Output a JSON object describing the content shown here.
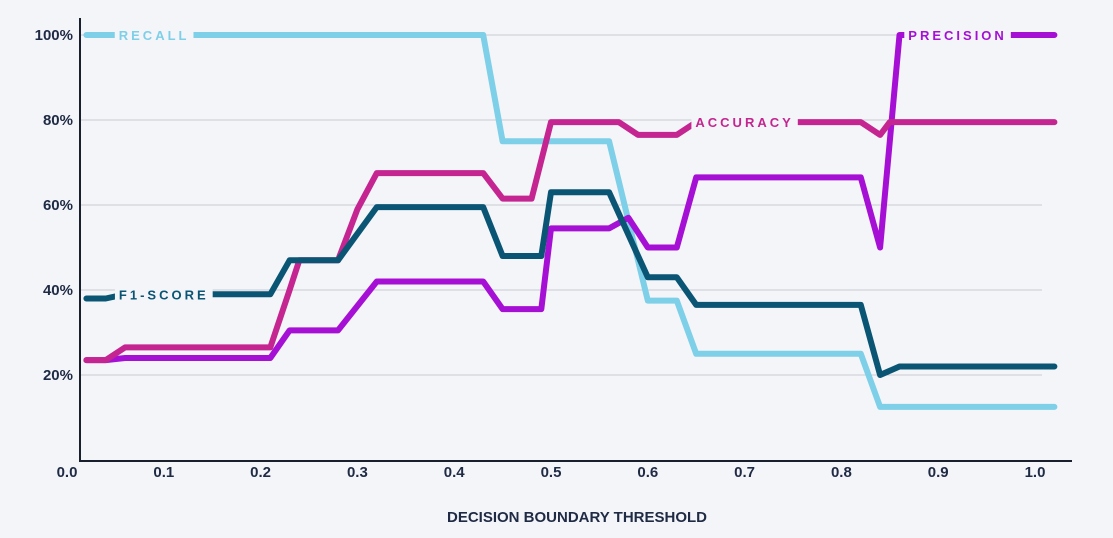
{
  "chart_data": {
    "type": "line",
    "xlabel": "DECISION BOUNDARY THRESHOLD",
    "ylabel": "",
    "xlim": [
      0.0,
      1.05
    ],
    "ylim": [
      0,
      100
    ],
    "x_ticks": [
      "0.0",
      "0.1",
      "0.2",
      "0.3",
      "0.4",
      "0.5",
      "0.6",
      "0.7",
      "0.8",
      "0.9",
      "1.0"
    ],
    "y_ticks": [
      "20%",
      "40%",
      "60%",
      "80%",
      "100%"
    ],
    "grid": "horizontal",
    "series": [
      {
        "name": "RECALL",
        "color": "#7ecfe8",
        "points": [
          [
            0.02,
            100
          ],
          [
            0.43,
            100
          ],
          [
            0.45,
            75
          ],
          [
            0.56,
            75
          ],
          [
            0.6,
            37.5
          ],
          [
            0.63,
            37.5
          ],
          [
            0.65,
            25
          ],
          [
            0.82,
            25
          ],
          [
            0.84,
            12.5
          ],
          [
            1.02,
            12.5
          ]
        ]
      },
      {
        "name": "PRECISION",
        "color": "#a510d4",
        "points": [
          [
            0.02,
            23.5
          ],
          [
            0.04,
            23.5
          ],
          [
            0.06,
            24
          ],
          [
            0.21,
            24
          ],
          [
            0.23,
            30.5
          ],
          [
            0.28,
            30.5
          ],
          [
            0.32,
            42
          ],
          [
            0.43,
            42
          ],
          [
            0.45,
            35.5
          ],
          [
            0.49,
            35.5
          ],
          [
            0.5,
            54.5
          ],
          [
            0.56,
            54.5
          ],
          [
            0.58,
            57
          ],
          [
            0.6,
            50
          ],
          [
            0.63,
            50
          ],
          [
            0.65,
            66.5
          ],
          [
            0.82,
            66.5
          ],
          [
            0.84,
            50
          ],
          [
            0.86,
            100
          ],
          [
            1.02,
            100
          ]
        ]
      },
      {
        "name": "ACCURACY",
        "color": "#c42590",
        "points": [
          [
            0.02,
            23.5
          ],
          [
            0.04,
            23.5
          ],
          [
            0.06,
            26.5
          ],
          [
            0.21,
            26.5
          ],
          [
            0.23,
            40
          ],
          [
            0.24,
            47
          ],
          [
            0.28,
            47
          ],
          [
            0.3,
            59
          ],
          [
            0.32,
            67.5
          ],
          [
            0.43,
            67.5
          ],
          [
            0.45,
            61.5
          ],
          [
            0.48,
            61.5
          ],
          [
            0.5,
            79.5
          ],
          [
            0.57,
            79.5
          ],
          [
            0.59,
            76.5
          ],
          [
            0.63,
            76.5
          ],
          [
            0.65,
            79.5
          ],
          [
            0.82,
            79.5
          ],
          [
            0.84,
            76.5
          ],
          [
            0.85,
            79.5
          ],
          [
            1.02,
            79.5
          ]
        ]
      },
      {
        "name": "F1-SCORE",
        "color": "#0a5574",
        "points": [
          [
            0.02,
            38
          ],
          [
            0.04,
            38
          ],
          [
            0.06,
            39
          ],
          [
            0.21,
            39
          ],
          [
            0.23,
            47
          ],
          [
            0.28,
            47
          ],
          [
            0.32,
            59.5
          ],
          [
            0.43,
            59.5
          ],
          [
            0.45,
            48
          ],
          [
            0.49,
            48
          ],
          [
            0.5,
            63
          ],
          [
            0.56,
            63
          ],
          [
            0.6,
            43
          ],
          [
            0.63,
            43
          ],
          [
            0.65,
            36.5
          ],
          [
            0.82,
            36.5
          ],
          [
            0.84,
            20
          ],
          [
            0.86,
            22
          ],
          [
            1.02,
            22
          ]
        ]
      }
    ]
  }
}
